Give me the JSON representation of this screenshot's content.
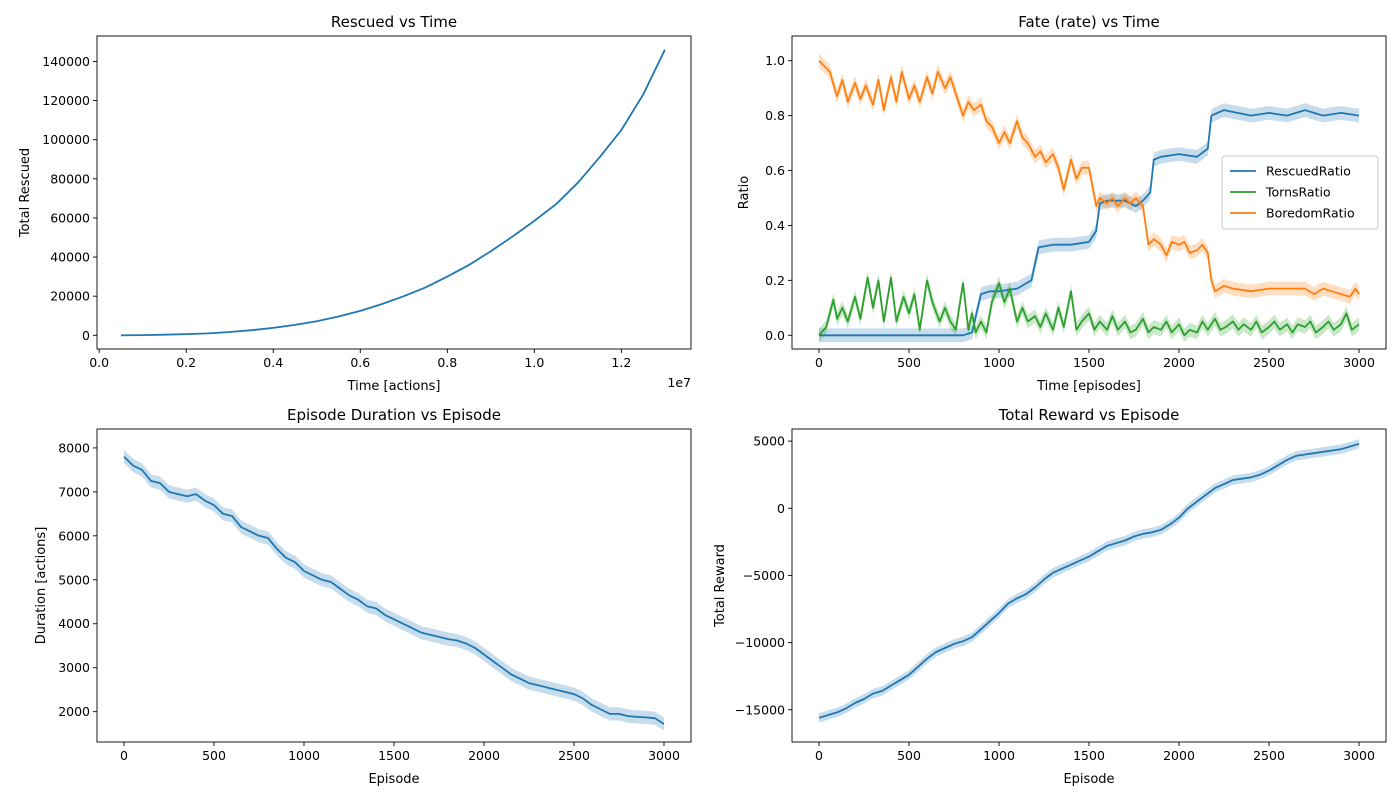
{
  "figure": {
    "colors": {
      "blue": "#1f77b4",
      "green": "#2ca02c",
      "orange": "#ff7f0e",
      "axis": "#000000",
      "background": "#ffffff"
    }
  },
  "chart_data": [
    {
      "type": "line",
      "title": "Rescued vs Time",
      "xlabel": "Time [actions]",
      "ylabel": "Total Rescued",
      "x_offset_label": "1e7",
      "xlim": [
        -0.005,
        1.36
      ],
      "ylim": [
        -7000,
        153000
      ],
      "xticks": [
        0.0,
        0.2,
        0.4,
        0.6,
        0.8,
        1.0,
        1.2
      ],
      "xtick_labels": [
        "0.0",
        "0.2",
        "0.4",
        "0.6",
        "0.8",
        "1.0",
        "1.2"
      ],
      "yticks": [
        0,
        20000,
        40000,
        60000,
        80000,
        100000,
        120000,
        140000
      ],
      "ytick_labels": [
        "0",
        "20000",
        "40000",
        "60000",
        "80000",
        "100000",
        "120000",
        "140000"
      ],
      "grid": false,
      "series": [
        {
          "color": "#1f77b4",
          "x": [
            0.05,
            0.1,
            0.15,
            0.2,
            0.25,
            0.3,
            0.35,
            0.4,
            0.45,
            0.5,
            0.55,
            0.6,
            0.65,
            0.7,
            0.75,
            0.8,
            0.85,
            0.9,
            0.95,
            1.0,
            1.05,
            1.1,
            1.15,
            1.2,
            1.25,
            1.3
          ],
          "y": [
            0,
            100,
            300,
            600,
            1000,
            1700,
            2600,
            3800,
            5300,
            7200,
            9600,
            12500,
            16000,
            20000,
            24500,
            30000,
            36000,
            43000,
            50500,
            58500,
            67000,
            78000,
            91000,
            105000,
            123000,
            146000
          ]
        }
      ]
    },
    {
      "type": "line",
      "title": "Fate (rate) vs Time",
      "xlabel": "Time [episodes]",
      "ylabel": "Ratio",
      "xlim": [
        -150,
        3150
      ],
      "ylim": [
        -0.05,
        1.09
      ],
      "xticks": [
        0,
        500,
        1000,
        1500,
        2000,
        2500,
        3000
      ],
      "xtick_labels": [
        "0",
        "500",
        "1000",
        "1500",
        "2000",
        "2500",
        "3000"
      ],
      "yticks": [
        0.0,
        0.2,
        0.4,
        0.6,
        0.8,
        1.0
      ],
      "ytick_labels": [
        "0.0",
        "0.2",
        "0.4",
        "0.6",
        "0.8",
        "1.0"
      ],
      "grid": false,
      "legend": "center-right",
      "band": 0.025,
      "series": [
        {
          "name": "RescuedRatio",
          "color": "#1f77b4",
          "x": [
            0,
            100,
            200,
            300,
            400,
            500,
            600,
            700,
            800,
            850,
            900,
            950,
            1000,
            1100,
            1180,
            1220,
            1300,
            1400,
            1500,
            1540,
            1560,
            1600,
            1700,
            1760,
            1800,
            1840,
            1860,
            1900,
            2000,
            2100,
            2160,
            2180,
            2250,
            2400,
            2500,
            2600,
            2700,
            2800,
            2900,
            3000
          ],
          "y": [
            0,
            0,
            0,
            0,
            0,
            0,
            0,
            0,
            0,
            0.01,
            0.15,
            0.16,
            0.16,
            0.17,
            0.2,
            0.32,
            0.33,
            0.33,
            0.34,
            0.38,
            0.48,
            0.49,
            0.49,
            0.47,
            0.49,
            0.52,
            0.64,
            0.65,
            0.66,
            0.65,
            0.68,
            0.8,
            0.82,
            0.8,
            0.81,
            0.8,
            0.82,
            0.8,
            0.81,
            0.8
          ]
        },
        {
          "name": "TornsRatio",
          "color": "#2ca02c",
          "x": [
            0,
            40,
            80,
            100,
            130,
            160,
            200,
            230,
            270,
            300,
            330,
            360,
            400,
            430,
            470,
            500,
            530,
            560,
            600,
            630,
            670,
            700,
            730,
            760,
            800,
            830,
            850,
            870,
            900,
            930,
            960,
            1000,
            1030,
            1060,
            1100,
            1130,
            1160,
            1200,
            1230,
            1260,
            1300,
            1330,
            1360,
            1400,
            1430,
            1460,
            1500,
            1530,
            1560,
            1600,
            1630,
            1660,
            1700,
            1730,
            1760,
            1800,
            1830,
            1860,
            1900,
            1930,
            1960,
            2000,
            2030,
            2060,
            2100,
            2130,
            2160,
            2200,
            2230,
            2260,
            2300,
            2330,
            2360,
            2400,
            2430,
            2460,
            2500,
            2530,
            2560,
            2600,
            2630,
            2660,
            2700,
            2730,
            2760,
            2800,
            2830,
            2860,
            2900,
            2930,
            2960,
            3000
          ],
          "y": [
            0,
            0.03,
            0.13,
            0.06,
            0.1,
            0.05,
            0.14,
            0.06,
            0.21,
            0.1,
            0.2,
            0.05,
            0.21,
            0.05,
            0.14,
            0.08,
            0.15,
            0.02,
            0.2,
            0.12,
            0.05,
            0.1,
            0.05,
            0.02,
            0.19,
            0.02,
            0.08,
            0.01,
            0.05,
            0.01,
            0.12,
            0.19,
            0.12,
            0.17,
            0.05,
            0.1,
            0.05,
            0.07,
            0.03,
            0.08,
            0.02,
            0.1,
            0.03,
            0.16,
            0.02,
            0.05,
            0.08,
            0.02,
            0.05,
            0.02,
            0.07,
            0.02,
            0.05,
            0.01,
            0.02,
            0.06,
            0.01,
            0.03,
            0.02,
            0.05,
            0.01,
            0.04,
            0.0,
            0.02,
            0.01,
            0.05,
            0.02,
            0.06,
            0.02,
            0.03,
            0.05,
            0.02,
            0.04,
            0.02,
            0.05,
            0.01,
            0.03,
            0.05,
            0.02,
            0.04,
            0.01,
            0.04,
            0.03,
            0.05,
            0.01,
            0.03,
            0.05,
            0.02,
            0.04,
            0.08,
            0.02,
            0.04
          ]
        },
        {
          "name": "BoredomRatio",
          "color": "#ff7f0e",
          "x": [
            0,
            30,
            60,
            100,
            130,
            160,
            200,
            230,
            260,
            300,
            330,
            360,
            400,
            430,
            460,
            500,
            530,
            560,
            600,
            630,
            660,
            700,
            730,
            760,
            800,
            830,
            860,
            900,
            930,
            960,
            1000,
            1030,
            1060,
            1100,
            1130,
            1160,
            1200,
            1230,
            1260,
            1300,
            1330,
            1360,
            1400,
            1430,
            1460,
            1500,
            1540,
            1560,
            1600,
            1630,
            1660,
            1700,
            1730,
            1760,
            1800,
            1830,
            1860,
            1900,
            1930,
            1960,
            2000,
            2030,
            2060,
            2100,
            2130,
            2160,
            2180,
            2200,
            2250,
            2300,
            2400,
            2500,
            2600,
            2700,
            2750,
            2800,
            2850,
            2900,
            2950,
            2980,
            3000
          ],
          "y": [
            1.0,
            0.98,
            0.96,
            0.87,
            0.93,
            0.85,
            0.92,
            0.86,
            0.91,
            0.84,
            0.93,
            0.82,
            0.94,
            0.85,
            0.96,
            0.86,
            0.91,
            0.85,
            0.94,
            0.88,
            0.96,
            0.9,
            0.94,
            0.88,
            0.8,
            0.85,
            0.82,
            0.84,
            0.78,
            0.76,
            0.7,
            0.74,
            0.7,
            0.78,
            0.72,
            0.7,
            0.65,
            0.67,
            0.63,
            0.66,
            0.61,
            0.53,
            0.64,
            0.57,
            0.61,
            0.61,
            0.47,
            0.5,
            0.48,
            0.5,
            0.47,
            0.5,
            0.48,
            0.5,
            0.47,
            0.33,
            0.35,
            0.33,
            0.29,
            0.34,
            0.33,
            0.34,
            0.3,
            0.31,
            0.33,
            0.3,
            0.2,
            0.16,
            0.18,
            0.17,
            0.16,
            0.17,
            0.17,
            0.17,
            0.15,
            0.17,
            0.16,
            0.15,
            0.14,
            0.17,
            0.15
          ]
        }
      ]
    },
    {
      "type": "line",
      "title": "Episode Duration vs Episode",
      "xlabel": "Episode",
      "ylabel": "Duration [actions]",
      "xlim": [
        -150,
        3150
      ],
      "ylim": [
        1310,
        8430
      ],
      "xticks": [
        0,
        500,
        1000,
        1500,
        2000,
        2500,
        3000
      ],
      "xtick_labels": [
        "0",
        "500",
        "1000",
        "1500",
        "2000",
        "2500",
        "3000"
      ],
      "yticks": [
        2000,
        3000,
        4000,
        5000,
        6000,
        7000,
        8000
      ],
      "ytick_labels": [
        "2000",
        "3000",
        "4000",
        "5000",
        "6000",
        "7000",
        "8000"
      ],
      "grid": false,
      "band": 150,
      "series": [
        {
          "color": "#1f77b4",
          "x": [
            0,
            50,
            100,
            150,
            200,
            250,
            300,
            350,
            400,
            450,
            500,
            550,
            600,
            650,
            700,
            750,
            800,
            850,
            900,
            950,
            1000,
            1050,
            1100,
            1150,
            1200,
            1250,
            1300,
            1350,
            1400,
            1450,
            1500,
            1550,
            1600,
            1650,
            1700,
            1750,
            1800,
            1850,
            1900,
            1950,
            2000,
            2050,
            2100,
            2150,
            2200,
            2250,
            2300,
            2350,
            2400,
            2450,
            2500,
            2550,
            2600,
            2650,
            2700,
            2750,
            2800,
            2850,
            2900,
            2950,
            3000
          ],
          "y": [
            7800,
            7600,
            7500,
            7250,
            7200,
            7000,
            6950,
            6900,
            6950,
            6800,
            6700,
            6500,
            6450,
            6200,
            6100,
            6000,
            5950,
            5700,
            5500,
            5400,
            5200,
            5100,
            5000,
            4950,
            4800,
            4650,
            4550,
            4400,
            4350,
            4200,
            4100,
            4000,
            3900,
            3800,
            3750,
            3700,
            3650,
            3620,
            3550,
            3450,
            3300,
            3150,
            3000,
            2850,
            2750,
            2650,
            2600,
            2550,
            2500,
            2450,
            2400,
            2300,
            2150,
            2050,
            1950,
            1950,
            1900,
            1880,
            1870,
            1850,
            1720
          ]
        }
      ]
    },
    {
      "type": "line",
      "title": "Total Reward vs Episode",
      "xlabel": "Episode",
      "ylabel": "Total Reward",
      "xlim": [
        -150,
        3150
      ],
      "ylim": [
        -17400,
        5900
      ],
      "xticks": [
        0,
        500,
        1000,
        1500,
        2000,
        2500,
        3000
      ],
      "xtick_labels": [
        "0",
        "500",
        "1000",
        "1500",
        "2000",
        "2500",
        "3000"
      ],
      "yticks": [
        -15000,
        -10000,
        -5000,
        0,
        5000
      ],
      "ytick_labels": [
        "−15000",
        "−10000",
        "−5000",
        "0",
        "5000"
      ],
      "grid": false,
      "band": 350,
      "series": [
        {
          "color": "#1f77b4",
          "x": [
            0,
            50,
            100,
            150,
            200,
            250,
            300,
            350,
            400,
            450,
            500,
            550,
            600,
            650,
            700,
            750,
            800,
            850,
            900,
            950,
            1000,
            1050,
            1100,
            1150,
            1200,
            1250,
            1300,
            1350,
            1400,
            1450,
            1500,
            1550,
            1600,
            1650,
            1700,
            1750,
            1800,
            1850,
            1900,
            1950,
            2000,
            2050,
            2100,
            2150,
            2200,
            2250,
            2300,
            2350,
            2400,
            2450,
            2500,
            2550,
            2600,
            2650,
            2700,
            2750,
            2800,
            2850,
            2900,
            2950,
            3000
          ],
          "y": [
            -15600,
            -15400,
            -15200,
            -14900,
            -14500,
            -14200,
            -13800,
            -13600,
            -13200,
            -12800,
            -12400,
            -11800,
            -11200,
            -10700,
            -10400,
            -10100,
            -9900,
            -9600,
            -9000,
            -8400,
            -7800,
            -7100,
            -6700,
            -6400,
            -5900,
            -5300,
            -4800,
            -4500,
            -4200,
            -3900,
            -3600,
            -3200,
            -2800,
            -2600,
            -2400,
            -2100,
            -1900,
            -1800,
            -1600,
            -1200,
            -700,
            0,
            500,
            1000,
            1500,
            1800,
            2100,
            2200,
            2300,
            2500,
            2800,
            3200,
            3600,
            3900,
            4000,
            4100,
            4200,
            4300,
            4400,
            4600,
            4800
          ]
        }
      ]
    }
  ]
}
